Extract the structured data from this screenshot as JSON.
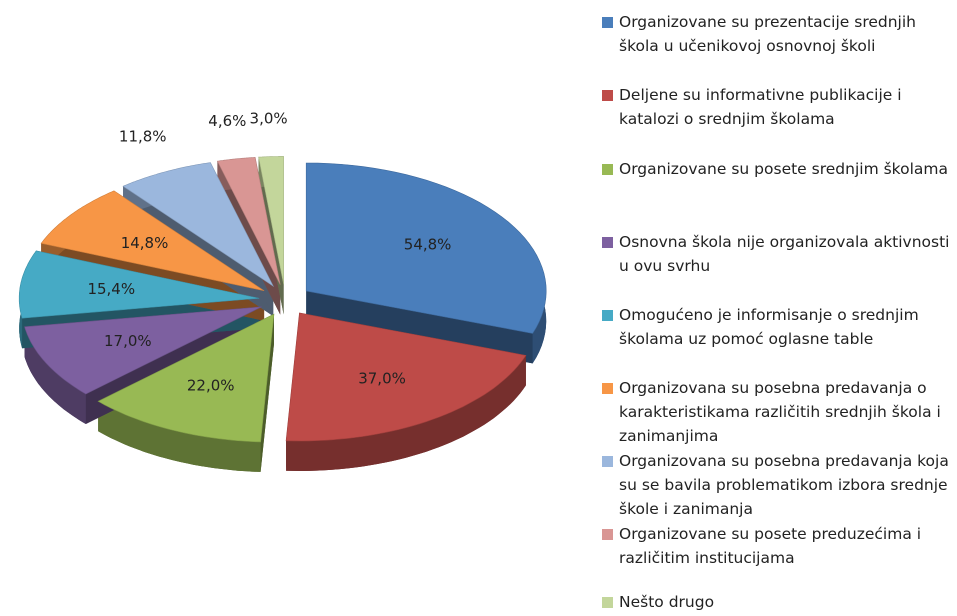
{
  "chart_data": {
    "type": "pie3d",
    "categories": [
      "Organizovane su prezentacije srednjih škola u učenikovoj osnovnoj školi",
      "Deljene su informativne publikacije i katalozi o srednjim školama",
      "Organizovane su posete srednjim školama",
      "Osnovna škola nije organizovala aktivnosti u ovu svrhu",
      "Omogućeno je informisanje o srednjim školama uz pomoć oglasne table",
      "Organizovana su posebna predavanja o karakteristikama različitih srednjih škola i zanimanjima",
      "Organizovana su posebna predavanja koja su se bavila problematikom izbora srednje škole i zanimanja",
      "Organizovane su posete preduzećima i različitim institucijama",
      "Nešto drugo"
    ],
    "values": [
      54.8,
      37.0,
      22.0,
      17.0,
      15.4,
      14.8,
      11.8,
      4.6,
      3.0
    ],
    "value_labels": [
      "54,8%",
      "37,0%",
      "22,0%",
      "17,0%",
      "15,4%",
      "14,8%",
      "11,8%",
      "4,6%",
      "3,0%"
    ],
    "colors": [
      "#4a7ebb",
      "#be4b48",
      "#98b954",
      "#7d60a0",
      "#46aac5",
      "#f79646",
      "#9bb7dd",
      "#d99694",
      "#c3d69b"
    ],
    "legend": "right"
  }
}
